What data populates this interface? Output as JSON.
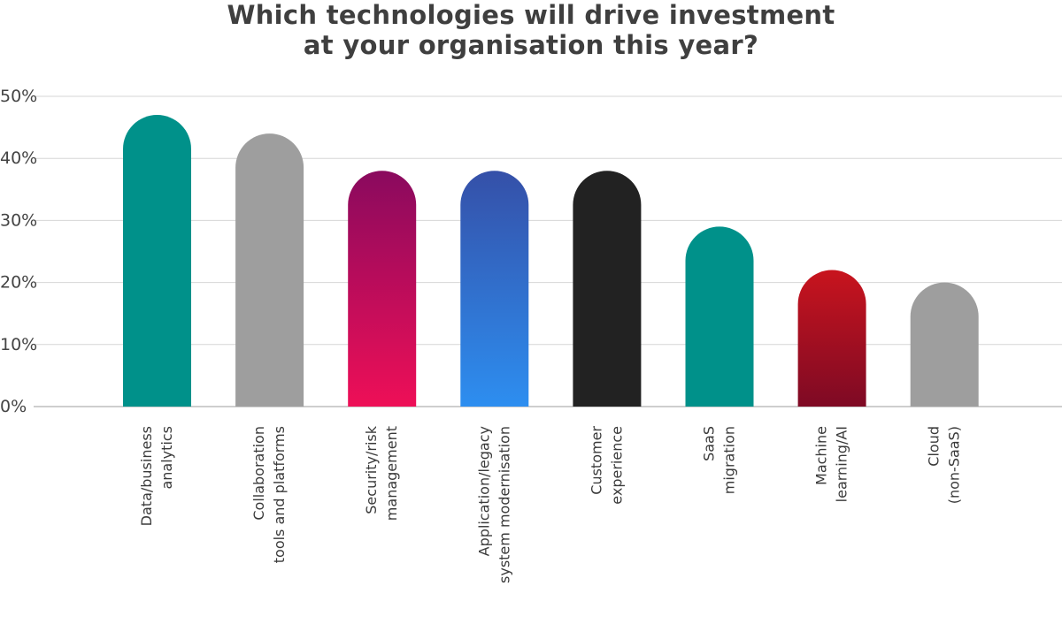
{
  "chart_data": {
    "type": "bar",
    "title_lines": [
      "Which technologies will drive investment",
      "at your organisation this year?"
    ],
    "categories": [
      [
        "Data/business",
        "analytics"
      ],
      [
        "Collaboration",
        "tools and platforms"
      ],
      [
        "Security/risk",
        "management"
      ],
      [
        "Application/legacy",
        "system modernisation"
      ],
      [
        "Customer",
        "experience"
      ],
      [
        "SaaS",
        "migration"
      ],
      [
        "Machine",
        "learning/AI"
      ],
      [
        "Cloud",
        "(non-SaaS)"
      ]
    ],
    "values": [
      47,
      44,
      38,
      38,
      38,
      29,
      22,
      20
    ],
    "ylim": [
      0,
      50
    ],
    "yticks": [
      "0%",
      "10%",
      "20%",
      "30%",
      "40%",
      "50%"
    ],
    "grid": true,
    "colors": [
      [
        "#00918a",
        "#00918a"
      ],
      [
        "#9e9e9e",
        "#9e9e9e"
      ],
      [
        "#8a0a5e",
        "#ee0f57"
      ],
      [
        "#3550a8",
        "#2d8ef0"
      ],
      [
        "#222222",
        "#222222"
      ],
      [
        "#00918a",
        "#00918a"
      ],
      [
        "#c8141e",
        "#7e0a24"
      ],
      [
        "#9e9e9e",
        "#9e9e9e"
      ]
    ]
  }
}
